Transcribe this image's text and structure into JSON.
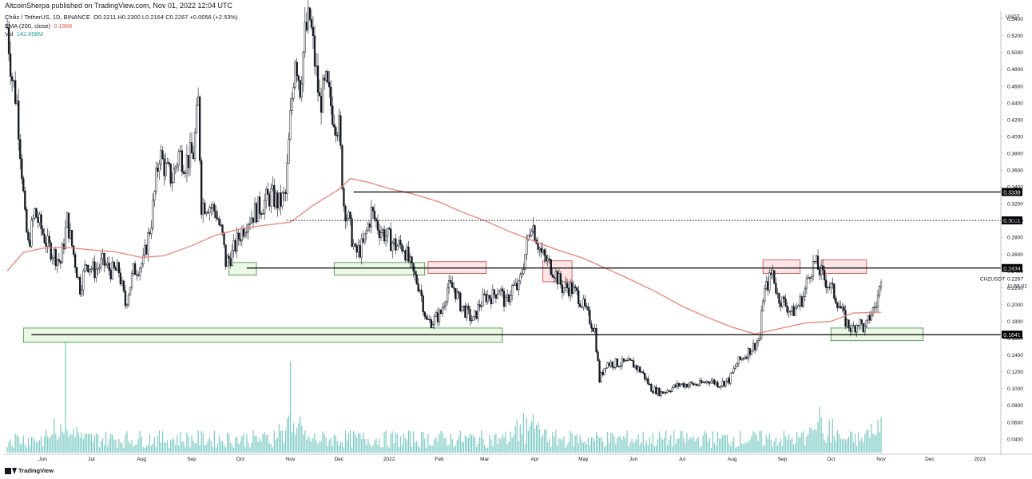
{
  "header": {
    "published": "AltcoinSherpa published on TradingView.com, Nov 01, 2022 12:04 UTC",
    "symbol_line": "Chiliz / TetherUS, 1D, BINANCE",
    "ohlc_text": "O0.2211  H0.2300  L0.2164  C0.2267  +0.0056 (+2.53%)",
    "ema_label": "EMA (200, close)",
    "ema_value": "0.1908",
    "vol_label": "Vol",
    "vol_value": "142.898M"
  },
  "footer": {
    "brand": "TradingView"
  },
  "colors": {
    "candle": "#131722",
    "ema": "#e8837a",
    "volume": "#4fb7b0",
    "demand_zone_fill": "#e8f8e2",
    "demand_zone_stroke": "#2e7d32",
    "supply_zone_fill": "#fde3e3",
    "supply_zone_stroke": "#c62828",
    "level_line": "#000000",
    "label_bg": "#000000",
    "label_text": "#ffffff"
  },
  "price_scale": {
    "currency": "USDT",
    "ticks": [
      "0.5400",
      "0.5200",
      "0.5000",
      "0.4800",
      "0.4600",
      "0.4400",
      "0.4200",
      "0.4000",
      "0.3800",
      "0.3600",
      "0.3400",
      "0.3200",
      "0.3000",
      "0.2800",
      "0.2600",
      "0.2400",
      "0.2200",
      "0.2000",
      "0.1800",
      "0.1600",
      "0.1400",
      "0.1200",
      "0.1000",
      "0.0800",
      "0.0600",
      "0.0400"
    ]
  },
  "time_axis": {
    "labels": [
      "Jun",
      "Jul",
      "Aug",
      "Sep",
      "Oct",
      "Nov",
      "Dec",
      "2022",
      "Feb",
      "Mar",
      "Apr",
      "May",
      "Jun",
      "Jul",
      "Aug",
      "Sep",
      "Oct",
      "Nov",
      "Dec",
      "2023"
    ]
  },
  "current_price": {
    "symbol": "CHZUSDT",
    "value": "0.2267",
    "countdown": "11:55:01"
  },
  "chart_data": {
    "type": "candlestick",
    "title": "Chiliz / TetherUS, 1D, BINANCE",
    "ylabel": "USDT",
    "ylim": [
      0.02,
      0.56
    ],
    "x": [
      "2021-05",
      "2021-06",
      "2021-07",
      "2021-08",
      "2021-09",
      "2021-10",
      "2021-11",
      "2021-12",
      "2022-01",
      "2022-02",
      "2022-03",
      "2022-04",
      "2022-05",
      "2022-06",
      "2022-07",
      "2022-08",
      "2022-09",
      "2022-10",
      "2022-11"
    ],
    "series": [
      {
        "name": "Chiliz / TetherUS",
        "close_path": [
          [
            "2021-05-10",
            0.53
          ],
          [
            "2021-05-13",
            0.47
          ],
          [
            "2021-05-16",
            0.44
          ],
          [
            "2021-05-19",
            0.36
          ],
          [
            "2021-05-21",
            0.3
          ],
          [
            "2021-05-23",
            0.27
          ],
          [
            "2021-05-27",
            0.31
          ],
          [
            "2021-05-31",
            0.29
          ],
          [
            "2021-06-04",
            0.27
          ],
          [
            "2021-06-08",
            0.26
          ],
          [
            "2021-06-12",
            0.25
          ],
          [
            "2021-06-16",
            0.3
          ],
          [
            "2021-06-20",
            0.26
          ],
          [
            "2021-06-24",
            0.22
          ],
          [
            "2021-06-28",
            0.25
          ],
          [
            "2021-07-03",
            0.24
          ],
          [
            "2021-07-08",
            0.25
          ],
          [
            "2021-07-13",
            0.24
          ],
          [
            "2021-07-18",
            0.24
          ],
          [
            "2021-07-22",
            0.2
          ],
          [
            "2021-07-27",
            0.24
          ],
          [
            "2021-08-02",
            0.25
          ],
          [
            "2021-08-07",
            0.3
          ],
          [
            "2021-08-12",
            0.38
          ],
          [
            "2021-08-16",
            0.36
          ],
          [
            "2021-08-20",
            0.35
          ],
          [
            "2021-08-24",
            0.38
          ],
          [
            "2021-08-28",
            0.37
          ],
          [
            "2021-09-02",
            0.38
          ],
          [
            "2021-09-05",
            0.44
          ],
          [
            "2021-09-07",
            0.32
          ],
          [
            "2021-09-11",
            0.32
          ],
          [
            "2021-09-16",
            0.31
          ],
          [
            "2021-09-20",
            0.28
          ],
          [
            "2021-09-22",
            0.25
          ],
          [
            "2021-09-26",
            0.26
          ],
          [
            "2021-09-30",
            0.28
          ],
          [
            "2021-10-05",
            0.3
          ],
          [
            "2021-10-10",
            0.31
          ],
          [
            "2021-10-15",
            0.32
          ],
          [
            "2021-10-20",
            0.33
          ],
          [
            "2021-10-25",
            0.32
          ],
          [
            "2021-10-29",
            0.33
          ],
          [
            "2021-11-01",
            0.42
          ],
          [
            "2021-11-04",
            0.5
          ],
          [
            "2021-11-07",
            0.46
          ],
          [
            "2021-11-10",
            0.52
          ],
          [
            "2021-11-13",
            0.54
          ],
          [
            "2021-11-16",
            0.49
          ],
          [
            "2021-11-19",
            0.44
          ],
          [
            "2021-11-23",
            0.46
          ],
          [
            "2021-11-27",
            0.43
          ],
          [
            "2021-12-01",
            0.41
          ],
          [
            "2021-12-04",
            0.32
          ],
          [
            "2021-12-07",
            0.3
          ],
          [
            "2021-12-11",
            0.26
          ],
          [
            "2021-12-16",
            0.27
          ],
          [
            "2021-12-21",
            0.31
          ],
          [
            "2021-12-26",
            0.29
          ],
          [
            "2021-12-31",
            0.28
          ],
          [
            "2022-01-05",
            0.27
          ],
          [
            "2022-01-10",
            0.27
          ],
          [
            "2022-01-15",
            0.24
          ],
          [
            "2022-01-20",
            0.22
          ],
          [
            "2022-01-24",
            0.18
          ],
          [
            "2022-01-28",
            0.18
          ],
          [
            "2022-02-02",
            0.19
          ],
          [
            "2022-02-06",
            0.22
          ],
          [
            "2022-02-10",
            0.22
          ],
          [
            "2022-02-14",
            0.2
          ],
          [
            "2022-02-18",
            0.19
          ],
          [
            "2022-02-22",
            0.18
          ],
          [
            "2022-02-26",
            0.2
          ],
          [
            "2022-03-02",
            0.21
          ],
          [
            "2022-03-06",
            0.21
          ],
          [
            "2022-03-10",
            0.22
          ],
          [
            "2022-03-14",
            0.2
          ],
          [
            "2022-03-18",
            0.22
          ],
          [
            "2022-03-22",
            0.22
          ],
          [
            "2022-03-26",
            0.26
          ],
          [
            "2022-03-30",
            0.3
          ],
          [
            "2022-04-02",
            0.28
          ],
          [
            "2022-04-05",
            0.26
          ],
          [
            "2022-04-09",
            0.25
          ],
          [
            "2022-04-13",
            0.24
          ],
          [
            "2022-04-18",
            0.22
          ],
          [
            "2022-04-23",
            0.22
          ],
          [
            "2022-04-28",
            0.21
          ],
          [
            "2022-05-03",
            0.19
          ],
          [
            "2022-05-08",
            0.17
          ],
          [
            "2022-05-11",
            0.11
          ],
          [
            "2022-05-15",
            0.13
          ],
          [
            "2022-05-20",
            0.13
          ],
          [
            "2022-05-25",
            0.13
          ],
          [
            "2022-05-31",
            0.13
          ],
          [
            "2022-06-06",
            0.12
          ],
          [
            "2022-06-12",
            0.1
          ],
          [
            "2022-06-18",
            0.095
          ],
          [
            "2022-06-24",
            0.1
          ],
          [
            "2022-06-30",
            0.105
          ],
          [
            "2022-07-06",
            0.105
          ],
          [
            "2022-07-12",
            0.105
          ],
          [
            "2022-07-18",
            0.11
          ],
          [
            "2022-07-24",
            0.105
          ],
          [
            "2022-07-30",
            0.11
          ],
          [
            "2022-08-04",
            0.13
          ],
          [
            "2022-08-09",
            0.14
          ],
          [
            "2022-08-14",
            0.15
          ],
          [
            "2022-08-18",
            0.16
          ],
          [
            "2022-08-20",
            0.21
          ],
          [
            "2022-08-24",
            0.23
          ],
          [
            "2022-08-26",
            0.24
          ],
          [
            "2022-08-29",
            0.21
          ],
          [
            "2022-09-03",
            0.2
          ],
          [
            "2022-09-07",
            0.19
          ],
          [
            "2022-09-11",
            0.2
          ],
          [
            "2022-09-14",
            0.21
          ],
          [
            "2022-09-18",
            0.24
          ],
          [
            "2022-09-21",
            0.25
          ],
          [
            "2022-09-24",
            0.24
          ],
          [
            "2022-09-27",
            0.23
          ],
          [
            "2022-10-01",
            0.22
          ],
          [
            "2022-10-06",
            0.2
          ],
          [
            "2022-10-10",
            0.18
          ],
          [
            "2022-10-14",
            0.17
          ],
          [
            "2022-10-18",
            0.18
          ],
          [
            "2022-10-22",
            0.17
          ],
          [
            "2022-10-26",
            0.19
          ],
          [
            "2022-10-29",
            0.2
          ],
          [
            "2022-11-01",
            0.2267
          ]
        ]
      },
      {
        "name": "EMA (200, close)",
        "values": [
          [
            "2021-05-10",
            0.24
          ],
          [
            "2021-05-20",
            0.262
          ],
          [
            "2021-06-01",
            0.267
          ],
          [
            "2021-06-15",
            0.268
          ],
          [
            "2021-07-01",
            0.265
          ],
          [
            "2021-07-15",
            0.263
          ],
          [
            "2021-08-01",
            0.256
          ],
          [
            "2021-08-15",
            0.258
          ],
          [
            "2021-09-01",
            0.27
          ],
          [
            "2021-09-15",
            0.282
          ],
          [
            "2021-10-01",
            0.29
          ],
          [
            "2021-10-15",
            0.294
          ],
          [
            "2021-11-01",
            0.298
          ],
          [
            "2021-11-15",
            0.318
          ],
          [
            "2021-12-01",
            0.337
          ],
          [
            "2021-12-08",
            0.35
          ],
          [
            "2021-12-20",
            0.345
          ],
          [
            "2022-01-01",
            0.338
          ],
          [
            "2022-01-15",
            0.332
          ],
          [
            "2022-02-01",
            0.322
          ],
          [
            "2022-02-15",
            0.31
          ],
          [
            "2022-03-01",
            0.3
          ],
          [
            "2022-03-15",
            0.288
          ],
          [
            "2022-04-01",
            0.275
          ],
          [
            "2022-04-15",
            0.265
          ],
          [
            "2022-05-01",
            0.255
          ],
          [
            "2022-05-15",
            0.243
          ],
          [
            "2022-06-01",
            0.228
          ],
          [
            "2022-06-15",
            0.215
          ],
          [
            "2022-07-01",
            0.198
          ],
          [
            "2022-07-15",
            0.186
          ],
          [
            "2022-08-01",
            0.173
          ],
          [
            "2022-08-15",
            0.165
          ],
          [
            "2022-09-01",
            0.172
          ],
          [
            "2022-09-15",
            0.178
          ],
          [
            "2022-10-01",
            0.18
          ],
          [
            "2022-10-15",
            0.19
          ],
          [
            "2022-11-01",
            0.1908
          ]
        ]
      },
      {
        "name": "Vol",
        "type": "bar",
        "peaks": [
          [
            "2021-06-15",
            "high"
          ],
          [
            "2021-11-01",
            "high"
          ],
          [
            "2022-03-28",
            "medium"
          ],
          [
            "2022-09-25",
            "medium"
          ],
          [
            "2022-11-01",
            "142.898M"
          ]
        ]
      }
    ],
    "horizontal_levels": [
      {
        "value": 0.3339,
        "label": "0.3339",
        "style": "solid",
        "from": "2021-12-10"
      },
      {
        "value": 0.3001,
        "label": "0.3001",
        "style": "dotted",
        "from": "2021-10-30"
      },
      {
        "value": 0.2434,
        "label": "0.2434",
        "style": "solid",
        "from": "2021-10-05"
      },
      {
        "value": 0.1641,
        "label": "0.1641",
        "style": "solid",
        "from": "2021-05-25"
      }
    ],
    "zones": [
      {
        "kind": "demand",
        "from": "2021-05-20",
        "to": "2022-03-12",
        "low": 0.155,
        "high": 0.172
      },
      {
        "kind": "demand",
        "from": "2021-09-24",
        "to": "2021-10-11",
        "low": 0.235,
        "high": 0.25
      },
      {
        "kind": "demand",
        "from": "2021-11-28",
        "to": "2022-01-23",
        "low": 0.235,
        "high": 0.25
      },
      {
        "kind": "demand",
        "from": "2022-10-01",
        "to": "2022-11-27",
        "low": 0.157,
        "high": 0.172
      },
      {
        "kind": "supply",
        "from": "2022-01-25",
        "to": "2022-03-02",
        "low": 0.237,
        "high": 0.251
      },
      {
        "kind": "supply",
        "from": "2022-04-06",
        "to": "2022-04-24",
        "low": 0.227,
        "high": 0.252
      },
      {
        "kind": "supply",
        "from": "2022-08-20",
        "to": "2022-09-12",
        "low": 0.237,
        "high": 0.253
      },
      {
        "kind": "supply",
        "from": "2022-09-25",
        "to": "2022-10-23",
        "low": 0.237,
        "high": 0.253
      }
    ],
    "grid": false,
    "legend": "top-left"
  }
}
